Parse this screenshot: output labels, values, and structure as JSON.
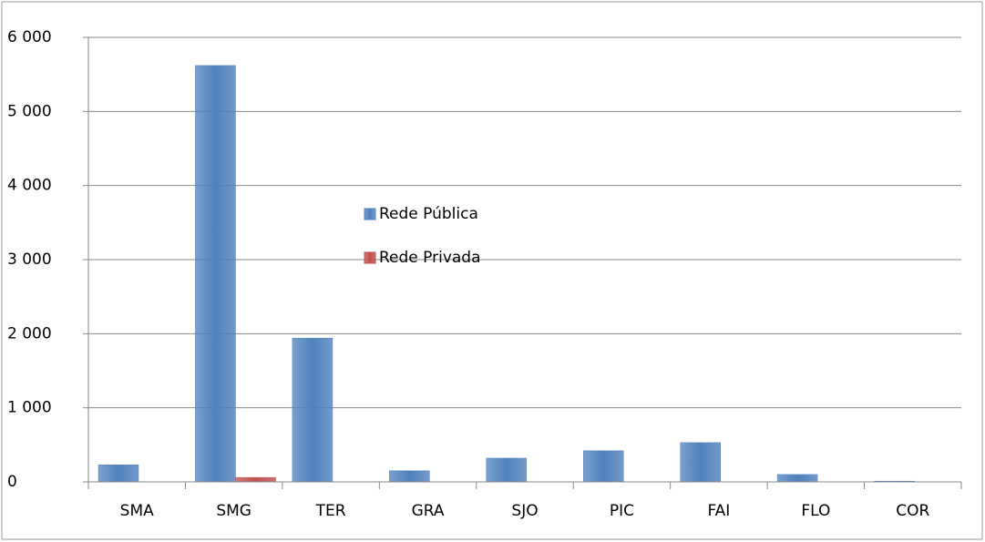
{
  "chart_data": {
    "type": "bar",
    "categories": [
      "SMA",
      "SMG",
      "TER",
      "GRA",
      "SJO",
      "PIC",
      "FAI",
      "FLO",
      "COR"
    ],
    "series": [
      {
        "name": "Rede Pública",
        "color": "#4f81bd",
        "values": [
          230,
          5620,
          1940,
          150,
          320,
          420,
          530,
          100,
          10
        ]
      },
      {
        "name": "Rede Privada",
        "color": "#c0504d",
        "values": [
          0,
          60,
          0,
          0,
          0,
          0,
          0,
          0,
          0
        ]
      }
    ],
    "ylim": [
      0,
      6000
    ],
    "yticks": [
      0,
      {
        "value": 1000,
        "label": "1 000"
      },
      {
        "value": 2000,
        "label": "2 000"
      },
      {
        "value": 3000,
        "label": "3 000"
      },
      {
        "value": 4000,
        "label": "4 000"
      },
      {
        "value": 5000,
        "label": "5 000"
      },
      {
        "value": 6000,
        "label": "6 000"
      }
    ],
    "grid": true
  }
}
